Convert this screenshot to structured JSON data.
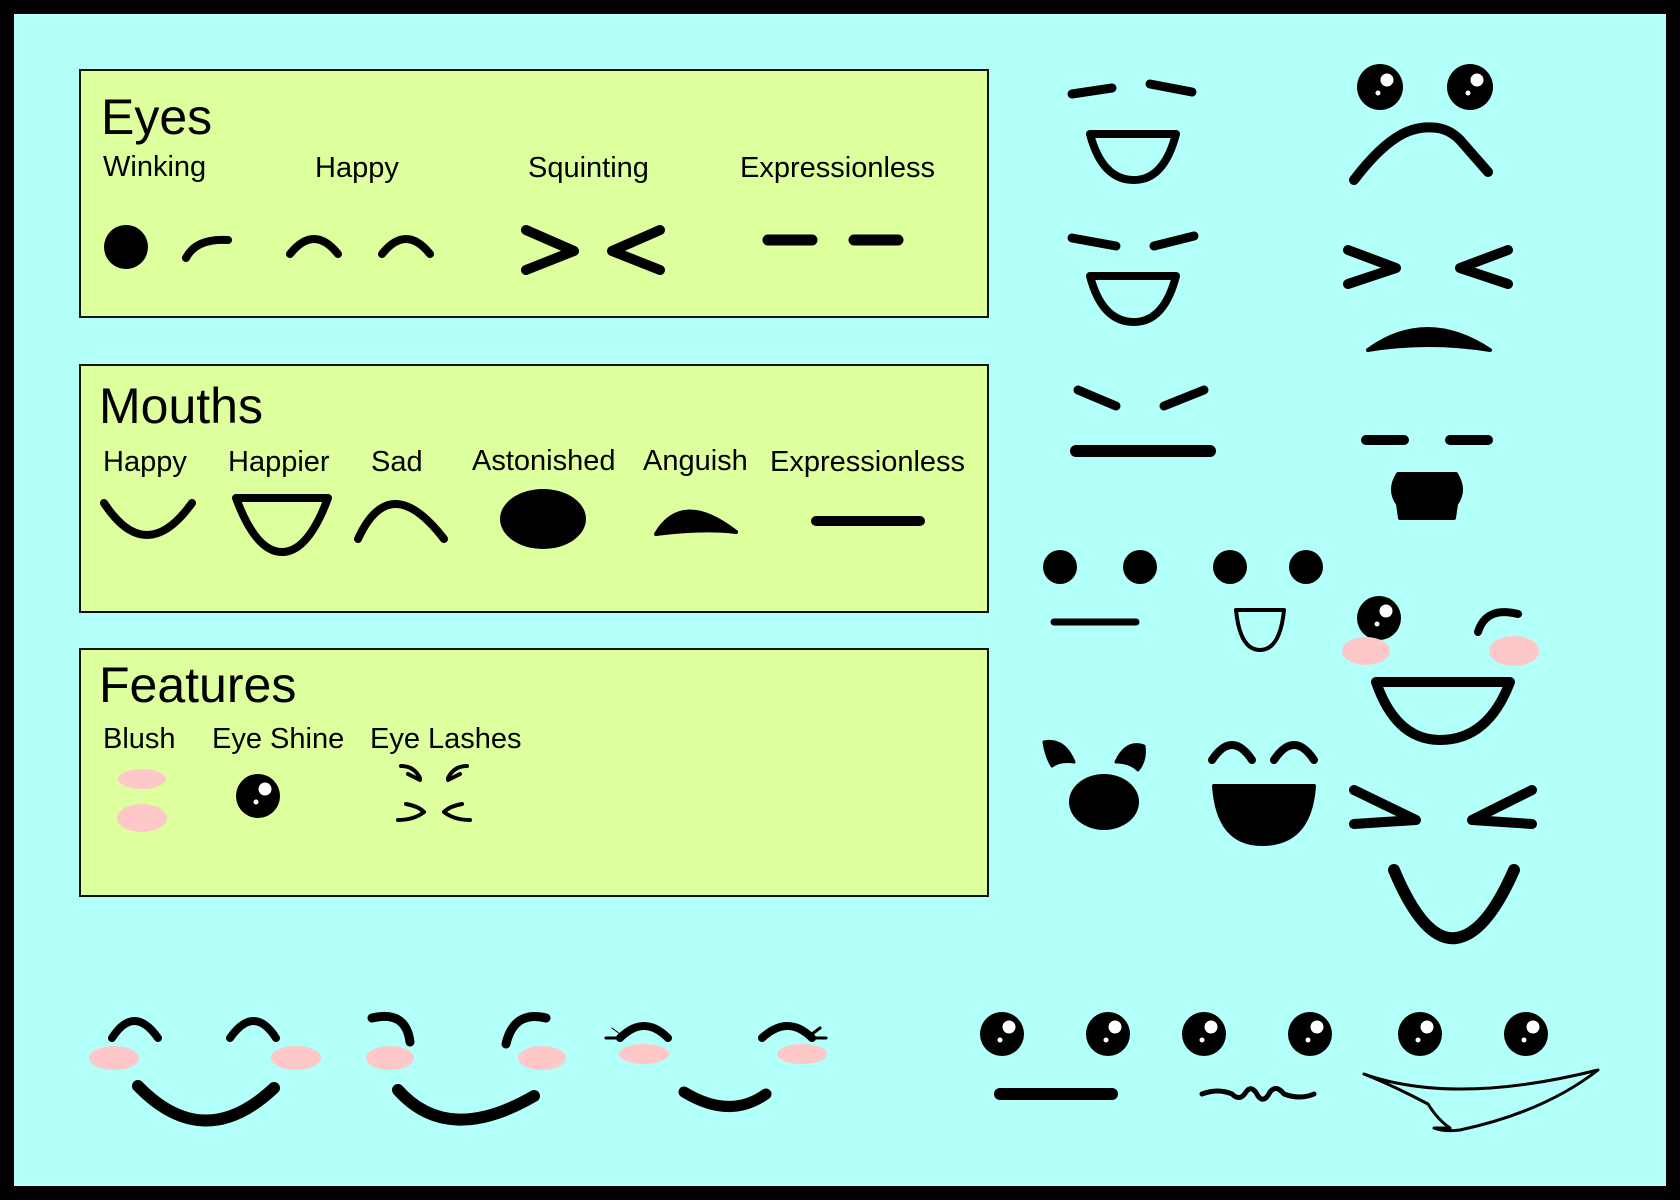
{
  "colors": {
    "background": "#b3fff9",
    "frame": "#000000",
    "panel": "#ddff9d",
    "ink": "#000000",
    "blush": "#ffc8c8",
    "shine": "#ffffff"
  },
  "panels": {
    "eyes": {
      "title": "Eyes",
      "labels": [
        "Winking",
        "Happy",
        "Squinting",
        "Expressionless"
      ],
      "icons": [
        "winking-eyes-icon",
        "happy-eyes-icon",
        "squinting-eyes-icon",
        "expressionless-eyes-icon"
      ]
    },
    "mouths": {
      "title": "Mouths",
      "labels": [
        "Happy",
        "Happier",
        "Sad",
        "Astonished",
        "Anguish",
        "Expressionless"
      ],
      "icons": [
        "happy-mouth-icon",
        "happier-mouth-icon",
        "sad-mouth-icon",
        "astonished-mouth-icon",
        "anguish-mouth-icon",
        "expressionless-mouth-icon"
      ]
    },
    "features": {
      "title": "Features",
      "labels": [
        "Blush",
        "Eye Shine",
        "Eye Lashes"
      ],
      "icons": [
        "blush-icon",
        "eye-shine-icon",
        "eye-lashes-icon"
      ]
    }
  },
  "example_faces": [
    "laughing-face-icon",
    "grinning-face-icon",
    "smug-face-icon",
    "worried-face-icon",
    "squint-frown-face-icon",
    "shocked-face-icon",
    "neutral-face-icon",
    "small-smile-face-icon",
    "winking-blush-face-icon",
    "surprised-face-icon",
    "joyful-face-icon",
    "squint-smile-face-icon",
    "content-blush-face-icon",
    "cheerful-blush-face-icon",
    "lashes-blush-face-icon",
    "blank-stare-face-icon",
    "wavy-mouth-face-icon",
    "wide-grin-face-icon"
  ]
}
